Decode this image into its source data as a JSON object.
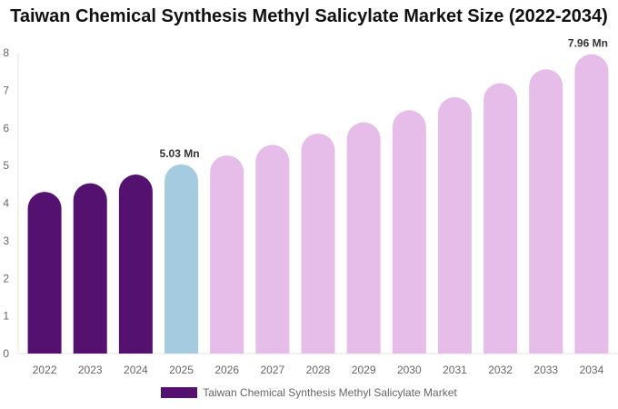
{
  "chart_data": {
    "type": "bar",
    "title": "Taiwan Chemical Synthesis Methyl Salicylate Market Size (2022-2034)",
    "categories": [
      "2022",
      "2023",
      "2024",
      "2025",
      "2026",
      "2027",
      "2028",
      "2029",
      "2030",
      "2031",
      "2032",
      "2033",
      "2034"
    ],
    "series": [
      {
        "name": "Taiwan Chemical Synthesis Methyl Salicylate Market",
        "values": [
          4.3,
          4.53,
          4.76,
          5.03,
          5.27,
          5.55,
          5.85,
          6.15,
          6.47,
          6.82,
          7.19,
          7.56,
          7.96
        ]
      }
    ],
    "data_labels": {
      "2025": "5.03 Mn",
      "2034": "7.96 Mn"
    },
    "ylim": [
      0,
      8
    ],
    "yticks": [
      0,
      1,
      2,
      3,
      4,
      5,
      6,
      7,
      8
    ],
    "xlabel": "",
    "ylabel": "",
    "grid": false,
    "legend": "bottom",
    "colors": {
      "historical": "#541170",
      "current": "#a4cbdf",
      "forecast": "#e6bde8"
    }
  }
}
